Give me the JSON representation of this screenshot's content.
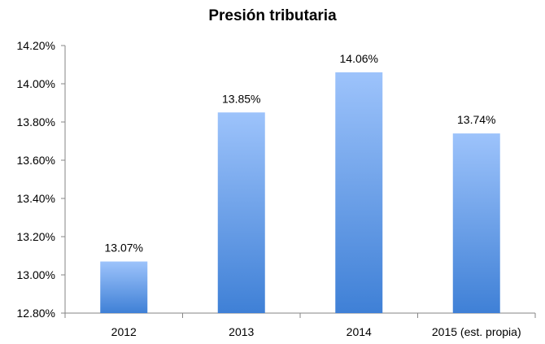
{
  "chart_data": {
    "type": "bar",
    "title": "Presión tributaria",
    "categories": [
      "2012",
      "2013",
      "2014",
      "2015 (est. propia)"
    ],
    "values": [
      13.07,
      13.85,
      14.06,
      13.74
    ],
    "data_labels": [
      "13.07%",
      "13.85%",
      "14.06%",
      "13.74%"
    ],
    "y_ticks": [
      12.8,
      13.0,
      13.2,
      13.4,
      13.6,
      13.8,
      14.0,
      14.2
    ],
    "y_tick_labels": [
      "12.80%",
      "13.00%",
      "13.20%",
      "13.40%",
      "13.60%",
      "13.80%",
      "14.00%",
      "14.20%"
    ],
    "ylim": [
      12.8,
      14.2
    ],
    "grid": false,
    "legend": "none",
    "colors": {
      "bar_top": "#9dc3fb",
      "bar_bottom": "#3f80d6",
      "axis": "#868686"
    }
  }
}
